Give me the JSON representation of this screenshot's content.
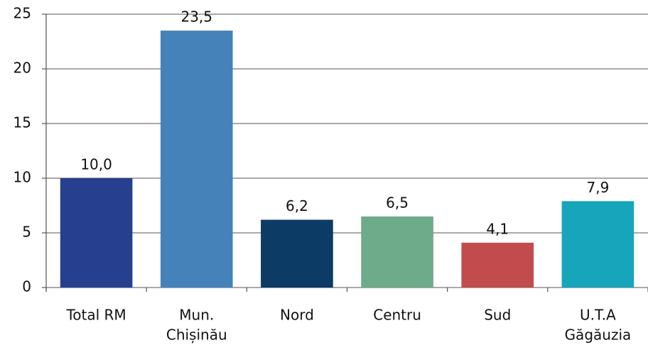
{
  "chart_data": {
    "type": "bar",
    "categories": [
      [
        "Total RM"
      ],
      [
        "Mun.",
        "Chișinău"
      ],
      [
        "Nord"
      ],
      [
        "Centru"
      ],
      [
        "Sud"
      ],
      [
        "U.T.A",
        "Găgăuzia"
      ]
    ],
    "values": [
      10.0,
      23.5,
      6.2,
      6.5,
      4.1,
      7.9
    ],
    "value_labels": [
      "10,0",
      "23,5",
      "6,2",
      "6,5",
      "4,1",
      "7,9"
    ],
    "colors": [
      "#263f8f",
      "#4682ba",
      "#0c3b66",
      "#6dab8b",
      "#c24c4d",
      "#16a5bb"
    ],
    "ylim": [
      0,
      25
    ],
    "yticks": [
      0,
      5,
      10,
      15,
      20,
      25
    ],
    "grid": true
  }
}
